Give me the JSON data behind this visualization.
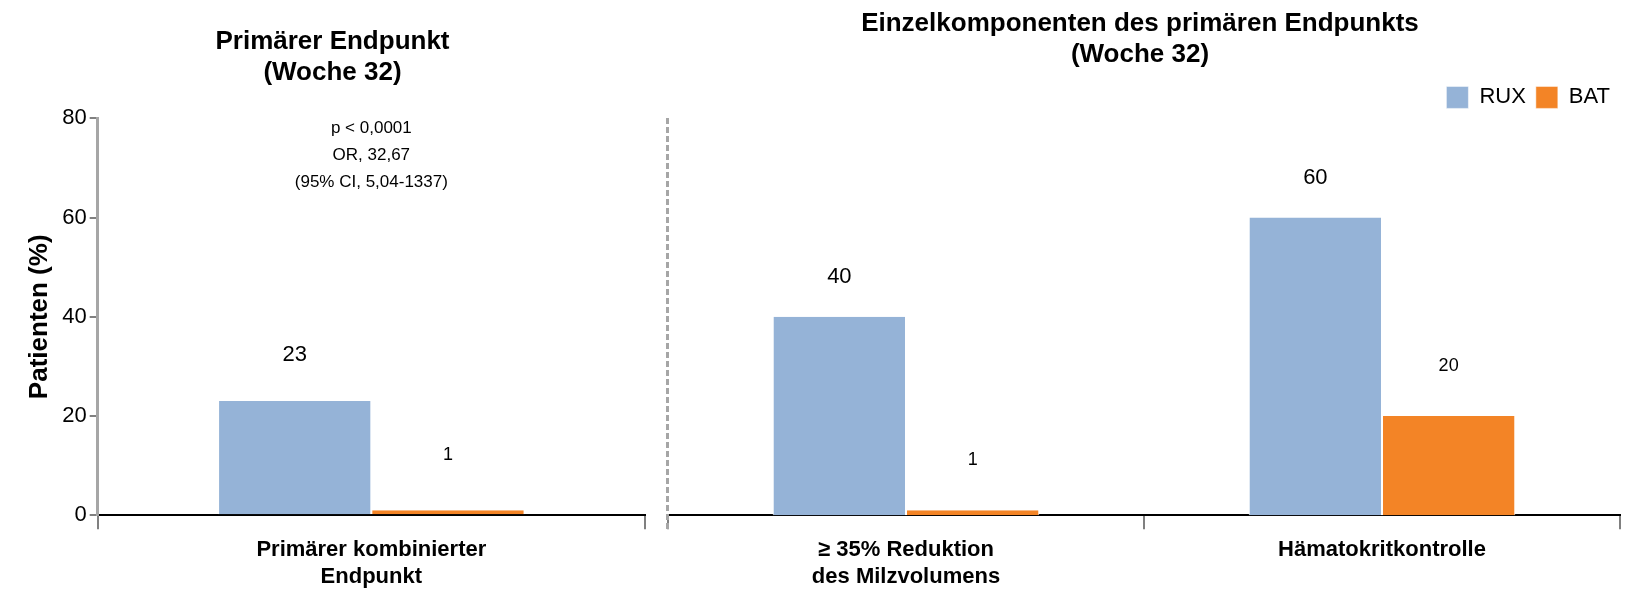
{
  "chart_data": [
    {
      "type": "bar",
      "title": [
        "Primärer Endpunkt",
        "(Woche 32)"
      ],
      "ylabel": "Patienten (%)",
      "categories": [
        "Primärer kombinierter Endpunkt"
      ],
      "series": [
        {
          "color": "#95b3d7",
          "values": [
            23
          ]
        },
        {
          "color": "#f38426",
          "values": [
            1
          ]
        }
      ],
      "ylim": [
        0,
        80
      ],
      "yticks": [
        0,
        20,
        40,
        60,
        80
      ],
      "grid": false,
      "legend": false,
      "data_labels": true,
      "annotations": [
        "p < 0,0001",
        "OR, 32,67",
        "(95% CI, 5,04-1337)"
      ]
    },
    {
      "type": "bar",
      "title": [
        "Einzelkomponenten des primären Endpunkts",
        "(Woche 32)"
      ],
      "categories": [
        "≥ 35% Reduktion des Milzvolumens",
        "Hämatokritkontrolle"
      ],
      "series": [
        {
          "name": "RUX",
          "color": "#95b3d7",
          "values": [
            40,
            60
          ]
        },
        {
          "name": "BAT",
          "color": "#f38426",
          "values": [
            1,
            20
          ]
        }
      ],
      "ylim": [
        0,
        80
      ],
      "yticks": [
        0,
        20,
        40,
        60,
        80
      ],
      "grid": false,
      "legend": "top right",
      "data_labels": true,
      "tick_labels": "x"
    }
  ]
}
